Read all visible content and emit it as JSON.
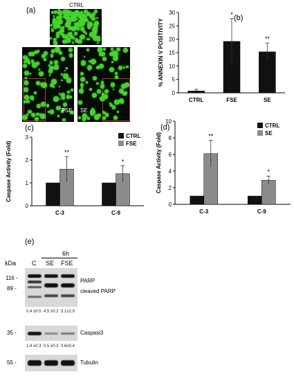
{
  "panel_a": {
    "label": "(a)",
    "ctrl_label": "CTRL",
    "fse_label": "FSE",
    "se_label": "SE"
  },
  "chart_data": [
    {
      "id": "b",
      "type": "bar",
      "panel_label": "(b)",
      "title": "",
      "ylabel": "% ANNEXIN V POSITIVITY",
      "categories": [
        "CTRL",
        "FSE",
        "SE"
      ],
      "values": [
        0.7,
        19.2,
        15.3
      ],
      "errors": [
        0.6,
        8.5,
        3.3
      ],
      "significance": [
        "",
        "*",
        "**"
      ],
      "ylim": [
        0,
        30
      ],
      "yticks": [
        0,
        5,
        10,
        15,
        20,
        25,
        30
      ],
      "color": "#111111"
    },
    {
      "id": "c",
      "type": "bar",
      "panel_label": "(c)",
      "title": "",
      "ylabel": "Caspase Activity (Fold)",
      "categories": [
        "C-3",
        "C-9"
      ],
      "series": [
        {
          "name": "CTRL",
          "values": [
            1.0,
            1.0
          ],
          "errors": [
            0,
            0
          ],
          "color": "#111111"
        },
        {
          "name": "FSE",
          "values": [
            1.6,
            1.4
          ],
          "errors": [
            0.55,
            0.35
          ],
          "color": "#8c8c8c"
        }
      ],
      "significance": [
        "**",
        "*"
      ],
      "ylim": [
        0,
        3
      ],
      "yticks": [
        0,
        1,
        2,
        3
      ],
      "legend": "top-right"
    },
    {
      "id": "d",
      "type": "bar",
      "panel_label": "(d)",
      "title": "",
      "ylabel": "Caspase Activity (Fold)",
      "categories": [
        "C-3",
        "C-9"
      ],
      "series": [
        {
          "name": "CTRL",
          "values": [
            1.0,
            1.0
          ],
          "errors": [
            0,
            0
          ],
          "color": "#111111"
        },
        {
          "name": "SE",
          "values": [
            6.1,
            2.9
          ],
          "errors": [
            1.6,
            0.5
          ],
          "color": "#8c8c8c"
        }
      ],
      "significance": [
        "**",
        "*"
      ],
      "ylim": [
        0,
        10
      ],
      "yticks": [
        0,
        2,
        4,
        6,
        8,
        10
      ],
      "legend": "top-right"
    }
  ],
  "panel_e": {
    "label": "(e)",
    "kda": "kDa",
    "time": "6h",
    "lanes": [
      "C",
      "SE",
      "FSE"
    ],
    "markers": [
      "116 -",
      "89 -",
      "35 -",
      "55 -"
    ],
    "bands": [
      "PARP",
      "cleaved PARP",
      "Caspasi3",
      "Tubulin"
    ],
    "parp_quant": [
      "0.4 ±0.5",
      "4.5 ±0.2",
      "5.1±2.9"
    ],
    "casp_quant": [
      "1.4 ±0.3",
      "0.5 ±0.3",
      "0.6±0.4"
    ]
  }
}
